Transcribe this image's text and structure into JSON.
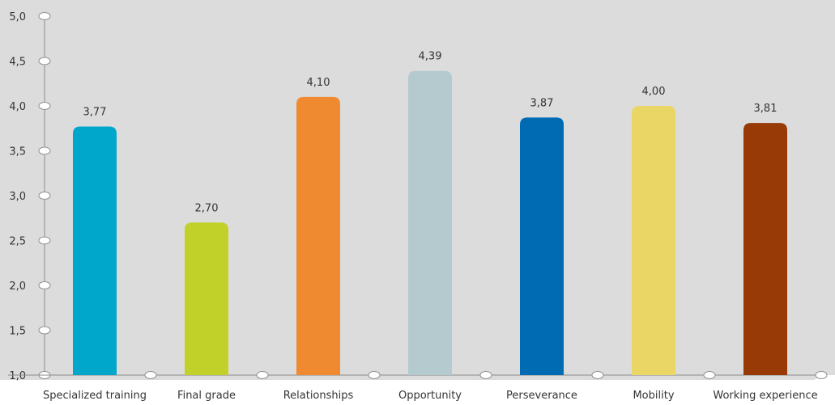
{
  "chart_data": {
    "type": "bar",
    "title": "",
    "xlabel": "",
    "ylabel": "",
    "ylim": [
      1.0,
      5.0
    ],
    "yticks": [
      "1,0",
      "1,5",
      "2,0",
      "2,5",
      "3,0",
      "3,5",
      "4,0",
      "4,5",
      "5,0"
    ],
    "ytick_values": [
      1.0,
      1.5,
      2.0,
      2.5,
      3.0,
      3.5,
      4.0,
      4.5,
      5.0
    ],
    "categories": [
      "Specialized training",
      "Final grade",
      "Relationships",
      "Opportunity",
      "Perseverance",
      "Mobility",
      "Working experience"
    ],
    "values": [
      3.77,
      2.7,
      4.1,
      4.39,
      3.87,
      4.0,
      3.81
    ],
    "value_labels": [
      "3,77",
      "2,70",
      "4,10",
      "4,39",
      "3,87",
      "4,00",
      "3,81"
    ],
    "colors": [
      "#00a7cb",
      "#c2d12a",
      "#ef8a30",
      "#b4cace",
      "#006bb3",
      "#e9d665",
      "#983a05"
    ],
    "background": "#dcdcdd",
    "grid": false,
    "legend": "none"
  }
}
